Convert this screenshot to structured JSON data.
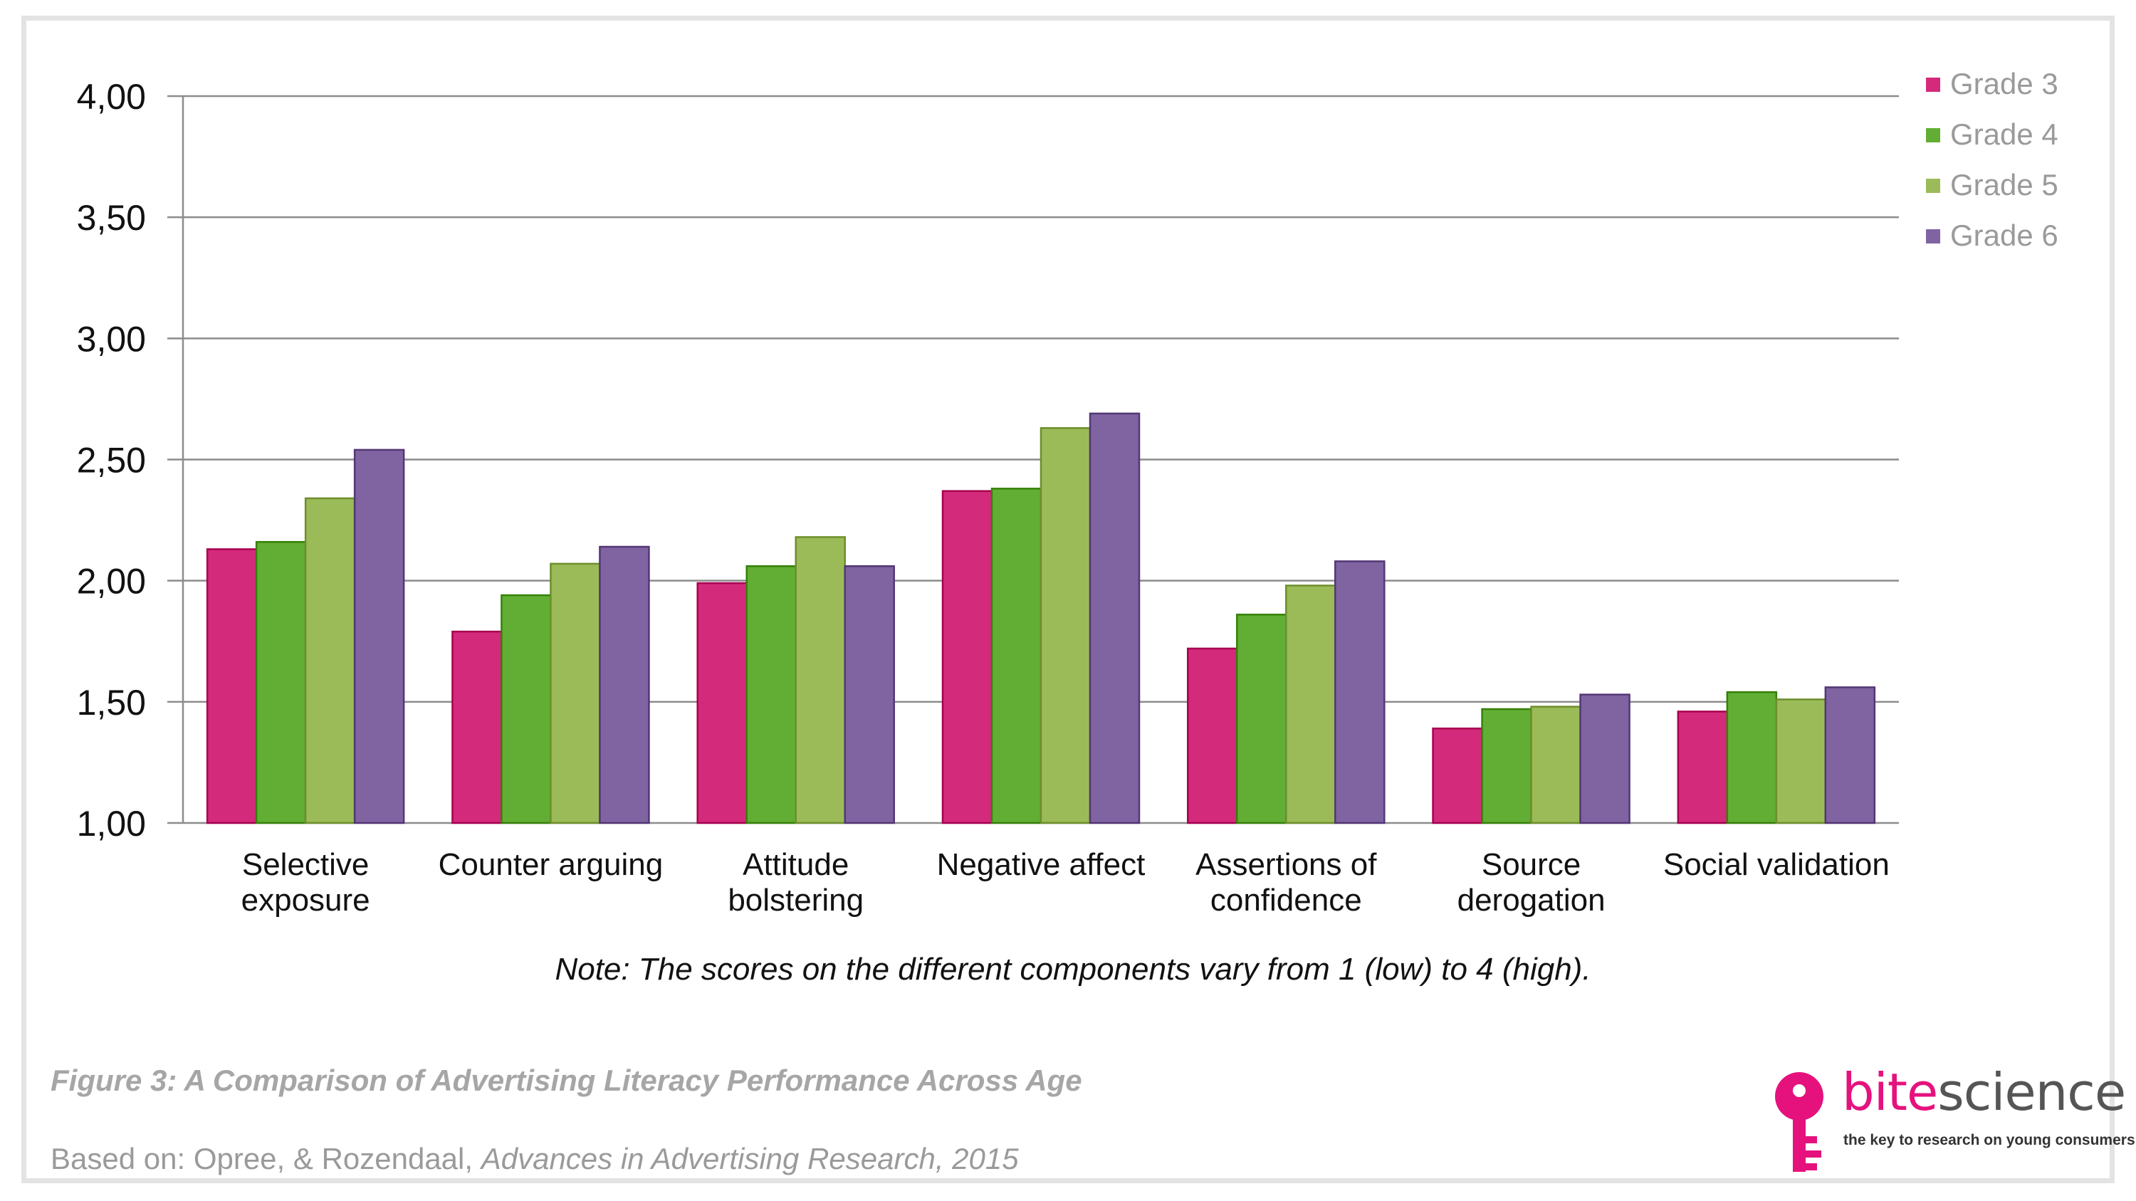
{
  "chart_data": {
    "type": "bar",
    "title": "",
    "xlabel": "",
    "ylabel": "",
    "ylim": [
      1.0,
      4.0
    ],
    "yticks": [
      "1,00",
      "1,50",
      "2,00",
      "2,50",
      "3,00",
      "3,50",
      "4,00"
    ],
    "ytick_values": [
      1.0,
      1.5,
      2.0,
      2.5,
      3.0,
      3.5,
      4.0
    ],
    "grid": true,
    "legend_position": "top-right",
    "categories": [
      [
        "Selective",
        "exposure"
      ],
      [
        "Counter arguing"
      ],
      [
        "Attitude",
        "bolstering"
      ],
      [
        "Negative affect"
      ],
      [
        "Assertions of",
        "confidence"
      ],
      [
        "Source",
        "derogation"
      ],
      [
        "Social validation"
      ]
    ],
    "series": [
      {
        "name": "Grade 3",
        "color": "#d42a7c",
        "values": [
          2.13,
          1.79,
          1.99,
          2.37,
          1.72,
          1.39,
          1.46
        ]
      },
      {
        "name": "Grade 4",
        "color": "#62ae35",
        "values": [
          2.16,
          1.94,
          2.06,
          2.38,
          1.86,
          1.47,
          1.54
        ]
      },
      {
        "name": "Grade 5",
        "color": "#9bbb59",
        "values": [
          2.34,
          2.07,
          2.18,
          2.63,
          1.98,
          1.48,
          1.51
        ]
      },
      {
        "name": "Grade 6",
        "color": "#8064a2",
        "values": [
          2.54,
          2.14,
          2.06,
          2.69,
          2.08,
          1.53,
          1.56
        ]
      }
    ]
  },
  "note": "Note: The scores on the different components vary from 1 (low) to 4 (high).",
  "figure_caption": "Figure 3: A Comparison of Advertising Literacy Performance Across Age",
  "source": {
    "prefix": "Based on: Opree, & Rozendaal, ",
    "journal": "Advances in Advertising Research, 2015"
  },
  "logo": {
    "bite": "bite",
    "science": "science",
    "tagline": "the key to research on young consumers",
    "color": "#e5127d"
  }
}
